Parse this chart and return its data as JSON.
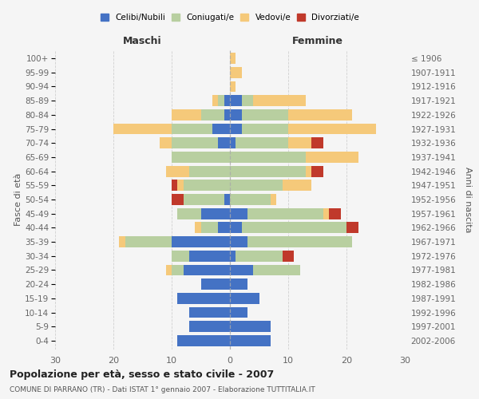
{
  "age_groups": [
    "0-4",
    "5-9",
    "10-14",
    "15-19",
    "20-24",
    "25-29",
    "30-34",
    "35-39",
    "40-44",
    "45-49",
    "50-54",
    "55-59",
    "60-64",
    "65-69",
    "70-74",
    "75-79",
    "80-84",
    "85-89",
    "90-94",
    "95-99",
    "100+"
  ],
  "birth_years": [
    "2002-2006",
    "1997-2001",
    "1992-1996",
    "1987-1991",
    "1982-1986",
    "1977-1981",
    "1972-1976",
    "1967-1971",
    "1962-1966",
    "1957-1961",
    "1952-1956",
    "1947-1951",
    "1942-1946",
    "1937-1941",
    "1932-1936",
    "1927-1931",
    "1922-1926",
    "1917-1921",
    "1912-1916",
    "1907-1911",
    "≤ 1906"
  ],
  "maschi": {
    "celibi": [
      9,
      7,
      7,
      9,
      5,
      8,
      7,
      10,
      2,
      5,
      1,
      0,
      0,
      0,
      2,
      3,
      1,
      1,
      0,
      0,
      0
    ],
    "coniugati": [
      0,
      0,
      0,
      0,
      0,
      2,
      3,
      8,
      3,
      4,
      7,
      8,
      7,
      10,
      8,
      7,
      4,
      1,
      0,
      0,
      0
    ],
    "vedovi": [
      0,
      0,
      0,
      0,
      0,
      1,
      0,
      1,
      1,
      0,
      0,
      1,
      4,
      0,
      2,
      10,
      5,
      1,
      0,
      0,
      0
    ],
    "divorziati": [
      0,
      0,
      0,
      0,
      0,
      0,
      0,
      0,
      0,
      0,
      2,
      1,
      0,
      0,
      0,
      0,
      0,
      0,
      0,
      0,
      0
    ]
  },
  "femmine": {
    "nubili": [
      7,
      7,
      3,
      5,
      3,
      4,
      1,
      3,
      2,
      3,
      0,
      0,
      0,
      0,
      1,
      2,
      2,
      2,
      0,
      0,
      0
    ],
    "coniugate": [
      0,
      0,
      0,
      0,
      0,
      8,
      8,
      18,
      18,
      13,
      7,
      9,
      13,
      13,
      9,
      8,
      8,
      2,
      0,
      0,
      0
    ],
    "vedove": [
      0,
      0,
      0,
      0,
      0,
      0,
      0,
      0,
      0,
      1,
      1,
      5,
      1,
      9,
      4,
      15,
      11,
      9,
      1,
      2,
      1
    ],
    "divorziate": [
      0,
      0,
      0,
      0,
      0,
      0,
      2,
      0,
      2,
      2,
      0,
      0,
      2,
      0,
      2,
      0,
      0,
      0,
      0,
      0,
      0
    ]
  },
  "colors": {
    "celibi": "#4472c4",
    "coniugati": "#b8cfa0",
    "vedovi": "#f5c97a",
    "divorziati": "#c0392b"
  },
  "title": "Popolazione per età, sesso e stato civile - 2007",
  "subtitle": "COMUNE DI PARRANO (TR) - Dati ISTAT 1° gennaio 2007 - Elaborazione TUTTITALIA.IT",
  "xlabel_left": "Maschi",
  "xlabel_right": "Femmine",
  "ylabel_left": "Fasce di età",
  "ylabel_right": "Anni di nascita",
  "xlim": 30,
  "bg_color": "#f5f5f5",
  "grid_color": "#cccccc"
}
